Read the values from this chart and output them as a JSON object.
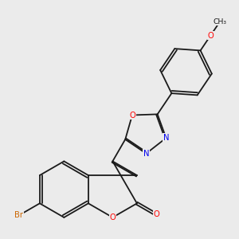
{
  "background_color": "#ebebeb",
  "bond_color": "#1a1a1a",
  "atom_colors": {
    "O": "#ff0000",
    "N": "#0000ee",
    "Br": "#cc6600",
    "C": "#1a1a1a"
  },
  "lw": 1.3,
  "fs": 7.2
}
